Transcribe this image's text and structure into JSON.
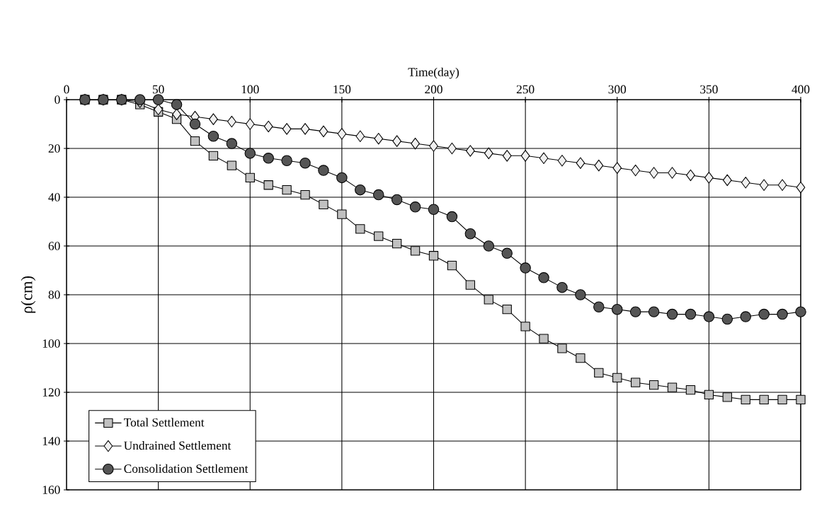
{
  "chart_data": {
    "type": "line",
    "xlabel": "Time(day)",
    "ylabel": "ρ(cm)",
    "x": [
      10,
      20,
      30,
      40,
      50,
      60,
      70,
      80,
      90,
      100,
      110,
      120,
      130,
      140,
      150,
      160,
      170,
      180,
      190,
      200,
      210,
      220,
      230,
      240,
      250,
      260,
      270,
      280,
      290,
      300,
      310,
      320,
      330,
      340,
      350,
      360,
      370,
      380,
      390,
      400
    ],
    "series": [
      {
        "name": "Total Settlement",
        "color": "#c0c0c0",
        "marker": "square",
        "values": [
          0,
          0,
          0,
          2,
          5,
          8,
          17,
          23,
          27,
          32,
          35,
          37,
          39,
          43,
          47,
          53,
          56,
          59,
          62,
          64,
          68,
          76,
          82,
          86,
          93,
          98,
          102,
          106,
          112,
          114,
          116,
          117,
          118,
          119,
          121,
          122,
          123,
          123,
          123,
          123
        ]
      },
      {
        "name": "Undrained Settlement",
        "color": "#f0f0f0",
        "marker": "diamond",
        "values": [
          0,
          0,
          0,
          1,
          4,
          6,
          7,
          8,
          9,
          10,
          11,
          12,
          12,
          13,
          14,
          15,
          16,
          17,
          18,
          19,
          20,
          21,
          22,
          23,
          23,
          24,
          25,
          26,
          27,
          28,
          29,
          30,
          30,
          31,
          32,
          33,
          34,
          35,
          35,
          36
        ]
      },
      {
        "name": "Consolidation Settlement",
        "color": "#555555",
        "marker": "circle",
        "values": [
          0,
          0,
          0,
          0,
          0,
          2,
          10,
          15,
          18,
          22,
          24,
          25,
          26,
          29,
          32,
          37,
          39,
          41,
          44,
          45,
          48,
          55,
          60,
          63,
          69,
          73,
          77,
          80,
          85,
          86,
          87,
          87,
          88,
          88,
          89,
          90,
          89,
          88,
          88,
          87
        ]
      }
    ],
    "xlim": [
      0,
      400
    ],
    "xticks": [
      0,
      50,
      100,
      150,
      200,
      250,
      300,
      350,
      400
    ],
    "ylim": [
      160,
      0
    ],
    "yticks": [
      0,
      20,
      40,
      60,
      80,
      100,
      120,
      140,
      160
    ],
    "grid": true,
    "legend": "bottom left",
    "line_style": "solid"
  }
}
